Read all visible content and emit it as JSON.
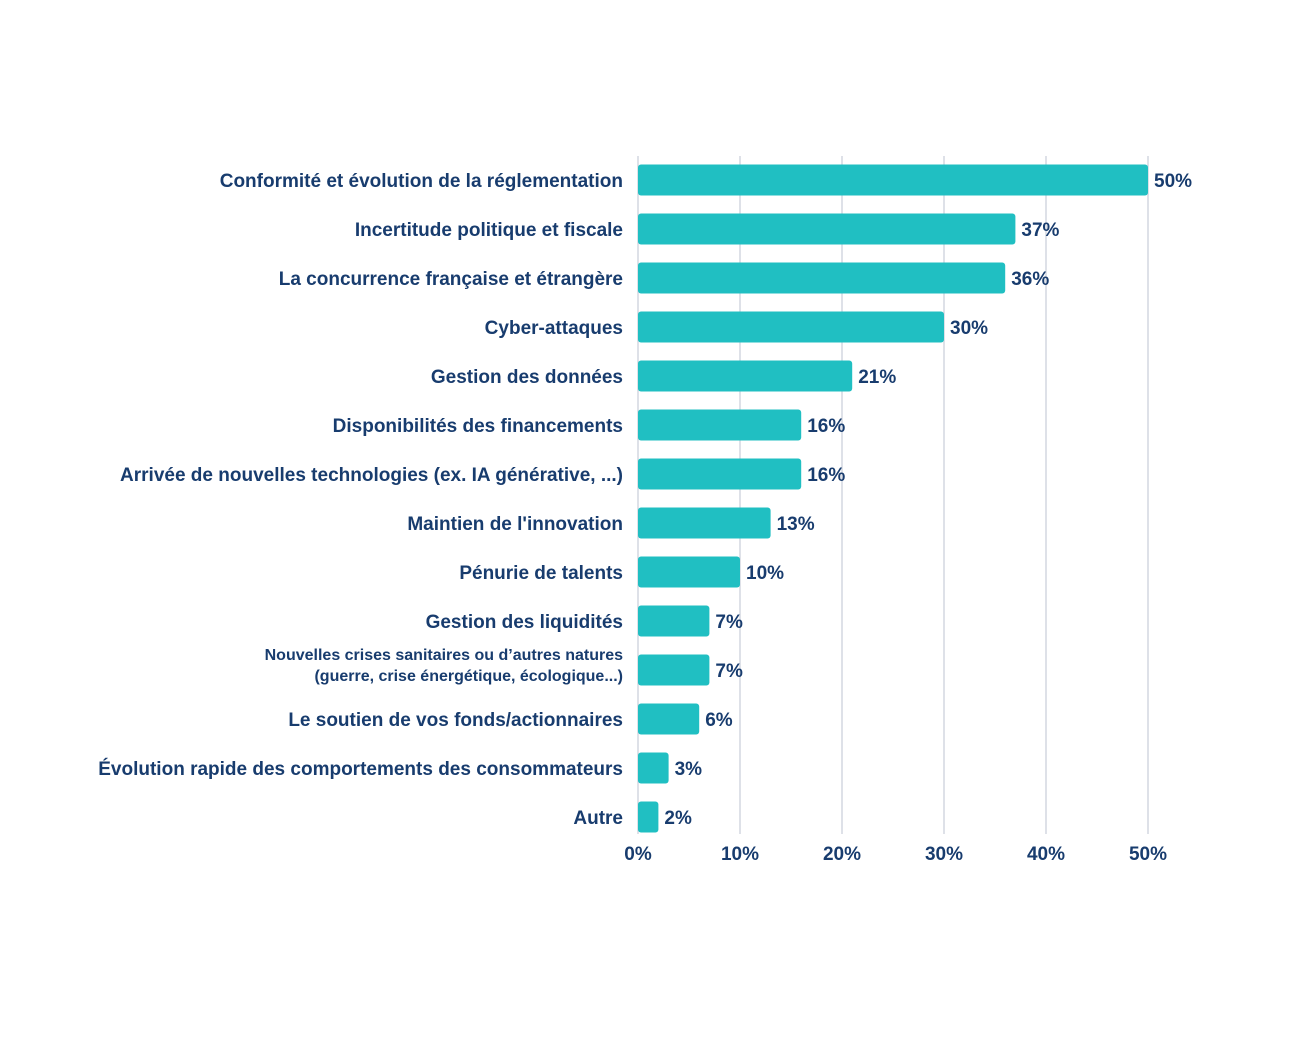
{
  "chart_data": {
    "type": "bar",
    "orientation": "horizontal",
    "title": "",
    "xlabel": "",
    "ylabel": "",
    "categories": [
      "Conformité et évolution de la réglementation",
      "Incertitude politique et fiscale",
      "La concurrence française et étrangère",
      "Cyber-attaques",
      "Gestion des données",
      "Disponibilités des financements",
      "Arrivée de nouvelles technologies (ex. IA générative, ...)",
      "Maintien de l'innovation",
      "Pénurie de talents",
      "Gestion des liquidités",
      [
        "Nouvelles crises sanitaires ou d’autres natures",
        "(guerre, crise énergétique, écologique...)"
      ],
      "Le soutien de vos fonds/actionnaires",
      "Évolution rapide des comportements des consommateurs",
      "Autre"
    ],
    "values": [
      50,
      37,
      36,
      30,
      21,
      16,
      16,
      13,
      10,
      7,
      7,
      6,
      3,
      2
    ],
    "value_labels": [
      "50%",
      "37%",
      "36%",
      "30%",
      "21%",
      "16%",
      "16%",
      "13%",
      "10%",
      "7%",
      "7%",
      "6%",
      "3%",
      "2%"
    ],
    "xlim": [
      0,
      50
    ],
    "xticks": [
      0,
      10,
      20,
      30,
      40,
      50
    ],
    "xtick_labels": [
      "0%",
      "10%",
      "20%",
      "30%",
      "40%",
      "50%"
    ],
    "grid": "vertical",
    "legend": "none",
    "colors": {
      "bar": "#20bfc2",
      "text": "#183c6e",
      "grid": "#c7cdd8"
    }
  }
}
